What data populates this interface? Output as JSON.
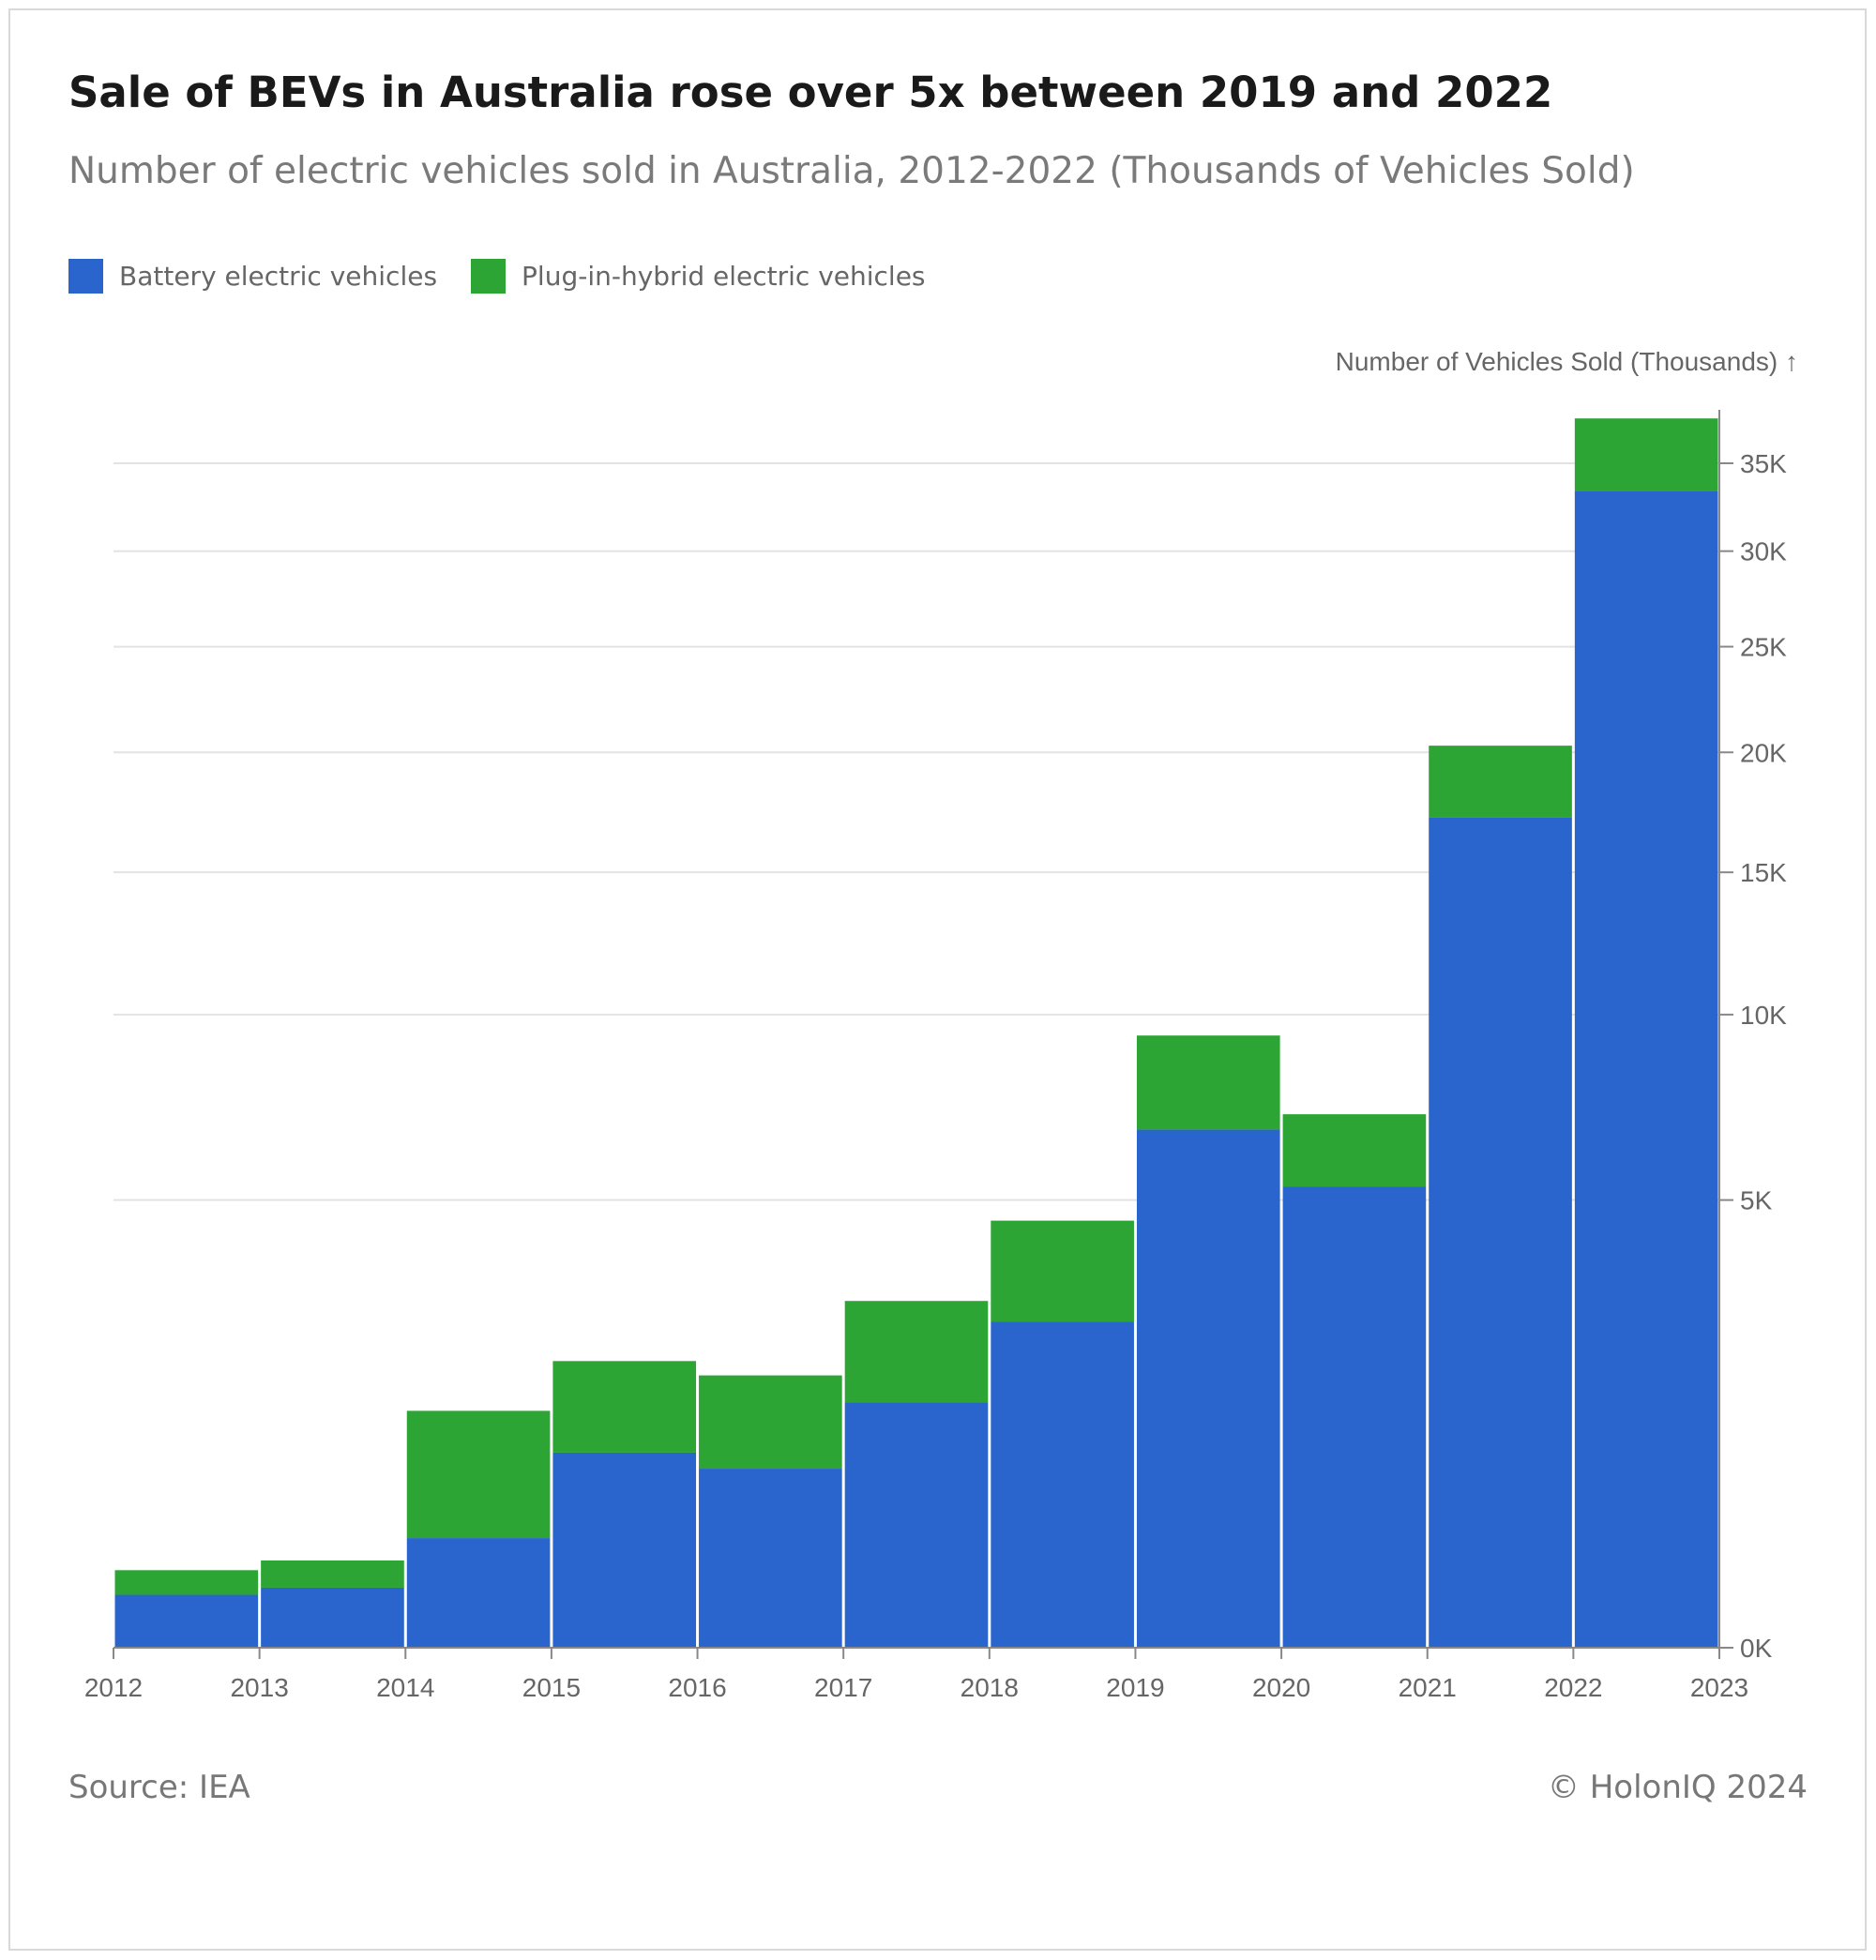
{
  "header": {
    "title": "Sale of BEVs in Australia rose over 5x between 2019 and 2022",
    "subtitle": "Number of electric vehicles sold in Australia, 2012-2022 (Thousands of Vehicles Sold)"
  },
  "legend": {
    "items": [
      {
        "label": "Battery electric vehicles",
        "color": "#2a65cd"
      },
      {
        "label": "Plug-in-hybrid electric vehicles",
        "color": "#2ca535"
      }
    ]
  },
  "footer": {
    "source": "Source: IEA",
    "copyright": "© HolonIQ 2024"
  },
  "chart_data": {
    "type": "bar",
    "stacked": true,
    "y_scale": "sqrt",
    "ylabel": "Number of Vehicles Sold (Thousands) ↑",
    "ylim": [
      0,
      38000
    ],
    "y_ticks": [
      0,
      5000,
      10000,
      15000,
      20000,
      25000,
      30000,
      35000
    ],
    "y_tick_labels": [
      "0K",
      "5K",
      "10K",
      "15K",
      "20K",
      "25K",
      "30K",
      "35K"
    ],
    "x_tick_labels": [
      "2012",
      "2013",
      "2014",
      "2015",
      "2016",
      "2017",
      "2018",
      "2019",
      "2020",
      "2021",
      "2022",
      "2023"
    ],
    "bins": [
      [
        2012,
        2013
      ],
      [
        2013,
        2014
      ],
      [
        2014,
        2015
      ],
      [
        2015,
        2016
      ],
      [
        2016,
        2017
      ],
      [
        2017,
        2018
      ],
      [
        2018,
        2019
      ],
      [
        2019,
        2020
      ],
      [
        2020,
        2021
      ],
      [
        2021,
        2022
      ],
      [
        2022,
        2023
      ]
    ],
    "series": [
      {
        "name": "Battery electric vehicles",
        "color": "#2a65cd",
        "values": [
          70,
          90,
          300,
          950,
          800,
          1500,
          2650,
          6700,
          5300,
          17200,
          33400
        ]
      },
      {
        "name": "Plug-in-hybrid electric vehicles",
        "color": "#2ca535",
        "values": [
          80,
          100,
          1100,
          1100,
          1050,
          1500,
          1900,
          2650,
          1800,
          3100,
          4300
        ]
      }
    ],
    "grid": true,
    "legend_position": "top-left"
  }
}
